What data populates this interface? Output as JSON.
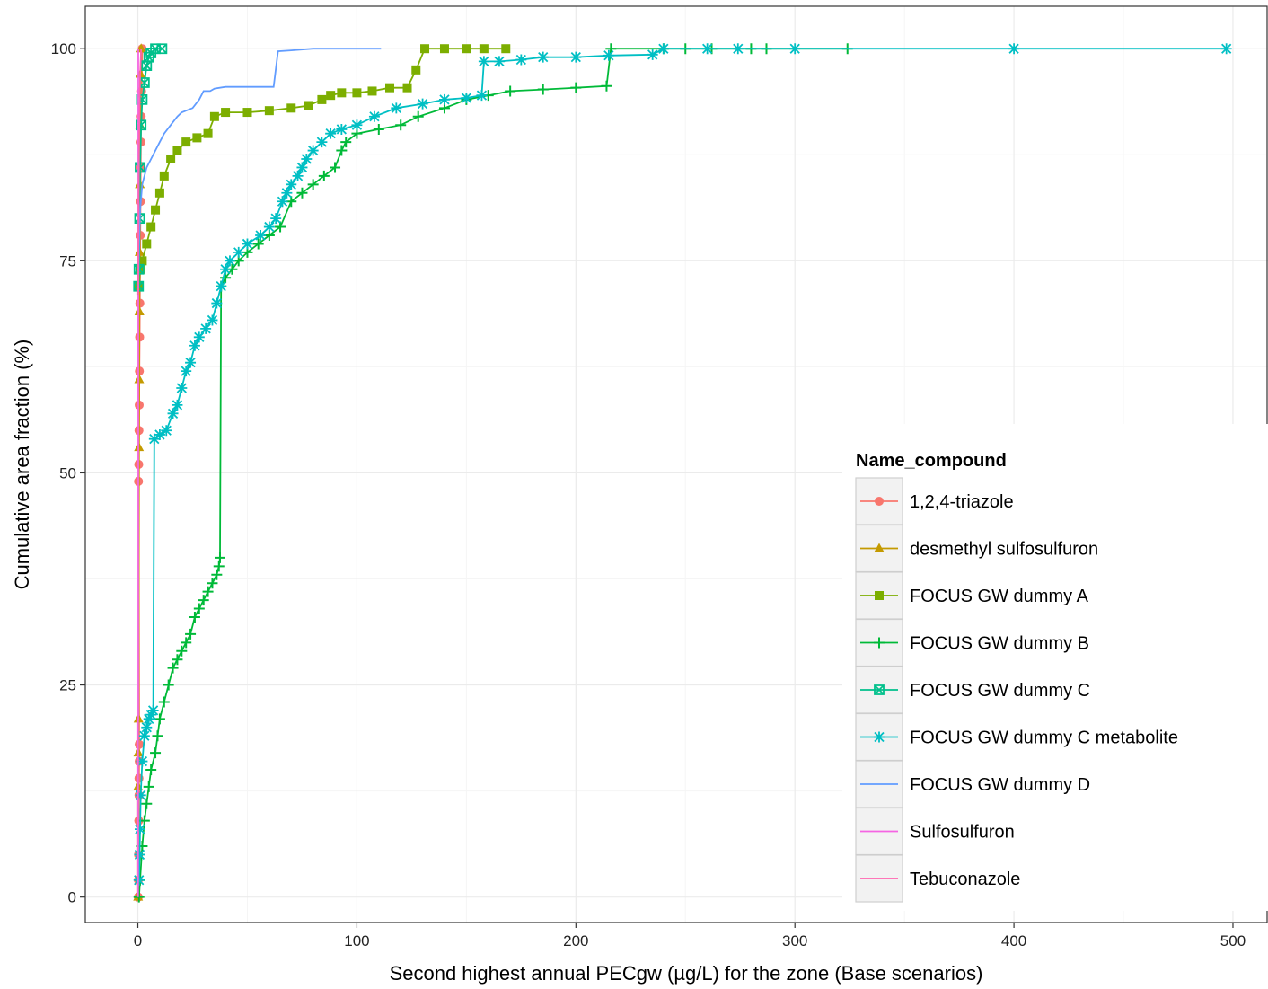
{
  "chart_data": {
    "type": "line",
    "title": "",
    "xlabel": "Second highest annual PECgw (µg/L) for the zone (Base scenarios)",
    "ylabel": "Cumulative area fraction (%)",
    "xlim": [
      -24,
      516
    ],
    "ylim": [
      -3,
      105
    ],
    "x_ticks": [
      0,
      100,
      200,
      300,
      400,
      500
    ],
    "y_ticks": [
      0,
      25,
      50,
      75,
      100
    ],
    "grid": true,
    "legend": {
      "title": "Name_compound",
      "position": "right-bottom"
    },
    "series": [
      {
        "name": "1,2,4-triazole",
        "color": "#F8766D",
        "marker": "circle",
        "points": [
          [
            0.2,
            0
          ],
          [
            0.2,
            2
          ],
          [
            0.3,
            5
          ],
          [
            0.4,
            9
          ],
          [
            0.5,
            12
          ],
          [
            0.5,
            14
          ],
          [
            0.6,
            16
          ],
          [
            0.6,
            18
          ],
          [
            0.3,
            49
          ],
          [
            0.4,
            51
          ],
          [
            0.5,
            55
          ],
          [
            0.6,
            58
          ],
          [
            0.7,
            62
          ],
          [
            0.8,
            66
          ],
          [
            0.9,
            70
          ],
          [
            1.0,
            74
          ],
          [
            1.1,
            78
          ],
          [
            1.2,
            82
          ],
          [
            1.3,
            86
          ],
          [
            1.4,
            89
          ],
          [
            1.5,
            92
          ],
          [
            1.7,
            95
          ],
          [
            2.0,
            100
          ]
        ]
      },
      {
        "name": "desmethyl sulfosulfuron",
        "color": "#C49A00",
        "marker": "triangle",
        "points": [
          [
            0.1,
            0
          ],
          [
            0.1,
            13
          ],
          [
            0.2,
            17
          ],
          [
            0.3,
            21
          ],
          [
            0.5,
            53
          ],
          [
            0.6,
            61
          ],
          [
            0.7,
            69
          ],
          [
            0.8,
            76
          ],
          [
            0.9,
            84
          ],
          [
            1.0,
            91
          ],
          [
            1.2,
            97
          ],
          [
            1.5,
            100
          ]
        ]
      },
      {
        "name": "FOCUS GW dummy A",
        "color": "#7CAE00",
        "marker": "square",
        "points": [
          [
            0.5,
            72
          ],
          [
            1,
            74
          ],
          [
            2,
            75
          ],
          [
            4,
            77
          ],
          [
            6,
            79
          ],
          [
            8,
            81
          ],
          [
            10,
            83
          ],
          [
            12,
            85
          ],
          [
            15,
            87
          ],
          [
            18,
            88
          ],
          [
            22,
            89
          ],
          [
            27,
            89.5
          ],
          [
            32,
            90
          ],
          [
            35,
            92
          ],
          [
            40,
            92.5
          ],
          [
            50,
            92.5
          ],
          [
            60,
            92.7
          ],
          [
            70,
            93
          ],
          [
            78,
            93.3
          ],
          [
            84,
            94
          ],
          [
            88,
            94.5
          ],
          [
            93,
            94.8
          ],
          [
            100,
            94.8
          ],
          [
            107,
            95
          ],
          [
            115,
            95.4
          ],
          [
            123,
            95.4
          ],
          [
            127,
            97.5
          ],
          [
            131,
            100
          ],
          [
            140,
            100
          ],
          [
            150,
            100
          ],
          [
            158,
            100
          ],
          [
            168,
            100
          ]
        ]
      },
      {
        "name": "FOCUS GW dummy B",
        "color": "#00BA38",
        "marker": "plus",
        "points": [
          [
            0.5,
            0
          ],
          [
            1,
            2
          ],
          [
            2,
            6
          ],
          [
            3,
            9
          ],
          [
            4,
            11
          ],
          [
            5,
            13
          ],
          [
            6,
            15
          ],
          [
            8,
            17
          ],
          [
            9,
            19
          ],
          [
            10,
            21
          ],
          [
            12,
            23
          ],
          [
            14,
            25
          ],
          [
            16,
            27
          ],
          [
            18,
            28
          ],
          [
            20,
            29
          ],
          [
            22,
            30
          ],
          [
            24,
            31
          ],
          [
            26,
            33
          ],
          [
            28,
            34
          ],
          [
            30,
            35
          ],
          [
            32,
            36
          ],
          [
            34,
            37
          ],
          [
            36,
            38
          ],
          [
            37,
            39
          ],
          [
            37.5,
            40
          ],
          [
            38,
            72
          ],
          [
            40,
            73
          ],
          [
            43,
            74
          ],
          [
            46,
            75
          ],
          [
            50,
            76
          ],
          [
            55,
            77
          ],
          [
            60,
            78
          ],
          [
            65,
            79
          ],
          [
            70,
            82
          ],
          [
            75,
            83
          ],
          [
            80,
            84
          ],
          [
            85,
            85
          ],
          [
            90,
            86
          ],
          [
            93,
            88
          ],
          [
            95,
            89
          ],
          [
            100,
            90
          ],
          [
            110,
            90.5
          ],
          [
            120,
            91
          ],
          [
            128,
            92
          ],
          [
            140,
            93
          ],
          [
            150,
            94
          ],
          [
            160,
            94.5
          ],
          [
            170,
            95
          ],
          [
            185,
            95.2
          ],
          [
            200,
            95.4
          ],
          [
            214,
            95.6
          ],
          [
            216,
            100
          ],
          [
            240,
            100
          ],
          [
            250,
            100
          ],
          [
            262,
            100
          ],
          [
            280,
            100
          ],
          [
            287,
            100
          ],
          [
            324,
            100
          ]
        ]
      },
      {
        "name": "FOCUS GW dummy C",
        "color": "#00C08B",
        "marker": "square-x",
        "points": [
          [
            0.3,
            72
          ],
          [
            0.5,
            74
          ],
          [
            0.8,
            80
          ],
          [
            1,
            86
          ],
          [
            1.5,
            91
          ],
          [
            2,
            94
          ],
          [
            3,
            96
          ],
          [
            4,
            98
          ],
          [
            5,
            99
          ],
          [
            6,
            99.5
          ],
          [
            8,
            100
          ],
          [
            11,
            100
          ]
        ]
      },
      {
        "name": "FOCUS GW dummy C metabolite",
        "color": "#00BFC4",
        "marker": "asterisk",
        "points": [
          [
            0.5,
            2
          ],
          [
            0.8,
            5
          ],
          [
            1,
            8
          ],
          [
            1.3,
            12
          ],
          [
            2,
            16
          ],
          [
            3,
            19
          ],
          [
            4,
            20
          ],
          [
            5,
            21
          ],
          [
            6,
            21.5
          ],
          [
            7,
            22
          ],
          [
            7.5,
            54
          ],
          [
            10,
            54.5
          ],
          [
            13,
            55
          ],
          [
            16,
            57
          ],
          [
            18,
            58
          ],
          [
            20,
            60
          ],
          [
            22,
            62
          ],
          [
            24,
            63
          ],
          [
            26,
            65
          ],
          [
            28,
            66
          ],
          [
            31,
            67
          ],
          [
            34,
            68
          ],
          [
            36,
            70
          ],
          [
            38,
            72
          ],
          [
            40,
            74
          ],
          [
            42,
            75
          ],
          [
            46,
            76
          ],
          [
            50,
            77
          ],
          [
            56,
            78
          ],
          [
            60,
            79
          ],
          [
            63,
            80
          ],
          [
            66,
            82
          ],
          [
            68,
            83
          ],
          [
            70,
            84
          ],
          [
            73,
            85
          ],
          [
            75,
            86
          ],
          [
            77,
            87
          ],
          [
            80,
            88
          ],
          [
            84,
            89
          ],
          [
            88,
            90
          ],
          [
            93,
            90.5
          ],
          [
            100,
            91
          ],
          [
            108,
            92
          ],
          [
            118,
            93
          ],
          [
            130,
            93.5
          ],
          [
            140,
            94
          ],
          [
            150,
            94.2
          ],
          [
            157,
            94.5
          ],
          [
            158,
            98.5
          ],
          [
            165,
            98.5
          ],
          [
            175,
            98.7
          ],
          [
            185,
            99
          ],
          [
            200,
            99
          ],
          [
            215,
            99.2
          ],
          [
            235,
            99.3
          ],
          [
            240,
            100
          ],
          [
            260,
            100
          ],
          [
            274,
            100
          ],
          [
            300,
            100
          ],
          [
            400,
            100
          ],
          [
            497,
            100
          ]
        ]
      },
      {
        "name": "FOCUS GW dummy D",
        "color": "#619CFF",
        "marker": "none",
        "points": [
          [
            0.2,
            72
          ],
          [
            0.5,
            77
          ],
          [
            1,
            81
          ],
          [
            2,
            84
          ],
          [
            4,
            86
          ],
          [
            6,
            87
          ],
          [
            8,
            88
          ],
          [
            10,
            89
          ],
          [
            12,
            90
          ],
          [
            15,
            91
          ],
          [
            18,
            92
          ],
          [
            20,
            92.5
          ],
          [
            25,
            93
          ],
          [
            28,
            94
          ],
          [
            30,
            95
          ],
          [
            33,
            95
          ],
          [
            35,
            95.3
          ],
          [
            40,
            95.5
          ],
          [
            50,
            95.5
          ],
          [
            62,
            95.5
          ],
          [
            64,
            99.7
          ],
          [
            70,
            99.8
          ],
          [
            80,
            100
          ],
          [
            90,
            100
          ],
          [
            111,
            100
          ]
        ]
      },
      {
        "name": "Sulfosulfuron",
        "color": "#F564E3",
        "marker": "none",
        "points": [
          [
            0.1,
            0
          ],
          [
            0.1,
            21
          ],
          [
            0.2,
            21
          ],
          [
            0.2,
            100
          ]
        ]
      },
      {
        "name": "Tebuconazole",
        "color": "#FF64B0",
        "marker": "none",
        "points": [
          [
            0.1,
            71
          ],
          [
            0.3,
            80
          ],
          [
            0.6,
            90
          ],
          [
            1,
            97
          ],
          [
            1.5,
            100
          ]
        ]
      }
    ]
  }
}
